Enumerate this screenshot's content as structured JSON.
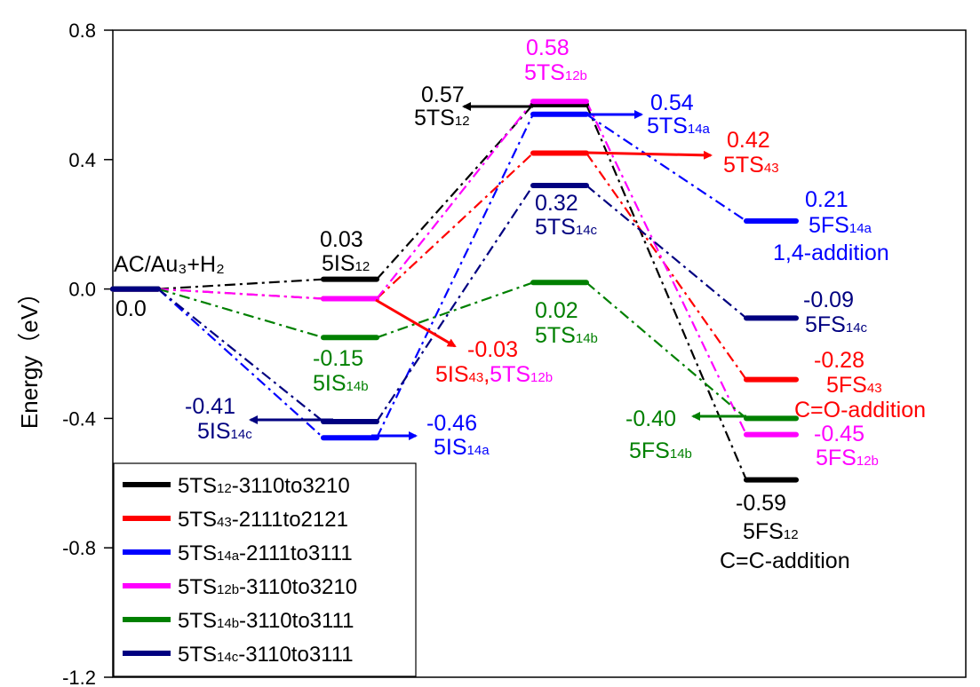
{
  "chart_data": {
    "type": "line",
    "title": "",
    "ylabel": "Energy（eV）",
    "ylim": [
      -1.2,
      0.8
    ],
    "yticks": [
      "0.8",
      "0.4",
      "0.0",
      "-0.4",
      "-0.8",
      "-1.2"
    ],
    "ytick_values": [
      0.8,
      0.4,
      0.0,
      -0.4,
      -0.8,
      -1.2
    ],
    "stages": [
      "AC/Au3+H2",
      "IS",
      "TS",
      "FS"
    ],
    "grid": false,
    "legend_position": "bottom-left",
    "colors": {
      "5TS12": "#000000",
      "5TS43": "#ff0000",
      "5TS14a": "#0000ff",
      "5TS12b": "#ff00ff",
      "5TS14b": "#008000",
      "5TS14c": "#000080"
    },
    "series": [
      {
        "id": "5TS12",
        "name": "5TS12-3110to3210",
        "legend_main": "5TS",
        "legend_sub": "12",
        "legend_tail": "-3110to3210",
        "values": [
          0.0,
          0.03,
          0.57,
          -0.59
        ]
      },
      {
        "id": "5TS43",
        "name": "5TS43-2111to2121",
        "legend_main": "5TS",
        "legend_sub": "43",
        "legend_tail": "-2111to2121",
        "values": [
          0.0,
          -0.03,
          0.42,
          -0.28
        ]
      },
      {
        "id": "5TS14a",
        "name": "5TS14a-2111to3111",
        "legend_main": "5TS",
        "legend_sub": "14a",
        "legend_tail": "-2111to3111",
        "values": [
          0.0,
          -0.46,
          0.54,
          0.21
        ]
      },
      {
        "id": "5TS12b",
        "name": "5TS12b-3110to3210",
        "legend_main": "5TS",
        "legend_sub": "12b",
        "legend_tail": "-3110to3210",
        "values": [
          0.0,
          -0.03,
          0.58,
          -0.45
        ]
      },
      {
        "id": "5TS14b",
        "name": "5TS14b-3110to3111",
        "legend_main": "5TS",
        "legend_sub": "14b",
        "legend_tail": "-3110to3111",
        "values": [
          0.0,
          -0.15,
          0.02,
          -0.4
        ]
      },
      {
        "id": "5TS14c",
        "name": "5TS14c-3110to3111",
        "legend_main": "5TS",
        "legend_sub": "14c",
        "legend_tail": "-3110to3111",
        "values": [
          0.0,
          -0.41,
          0.32,
          -0.09
        ]
      }
    ],
    "labels": {
      "start_name": "AC/Au₃+H₂",
      "start_value": "0.0",
      "is12_value": "0.03",
      "is12_main": "5IS",
      "is12_sub": "12",
      "is43_value": "-0.03",
      "is43_main1": "5IS",
      "is43_sub1": "43",
      "is43_sep": ",",
      "is43_main2": "5TS",
      "is43_sub2": "12b",
      "is14b_value": "-0.15",
      "is14b_main": "5IS",
      "is14b_sub": "14b",
      "is14c_value": "-0.41",
      "is14c_main": "5IS",
      "is14c_sub": "14c",
      "is14a_value": "-0.46",
      "is14a_main": "5IS",
      "is14a_sub": "14a",
      "ts12b_value": "0.58",
      "ts12b_main": "5TS",
      "ts12b_sub": "12b",
      "ts12_value": "0.57",
      "ts12_main": "5TS",
      "ts12_sub": "12",
      "ts14a_value": "0.54",
      "ts14a_main": "5TS",
      "ts14a_sub": "14a",
      "ts43_value": "0.42",
      "ts43_main": "5TS",
      "ts43_sub": "43",
      "ts14c_value": "0.32",
      "ts14c_main": "5TS",
      "ts14c_sub": "14c",
      "ts14b_value": "0.02",
      "ts14b_main": "5TS",
      "ts14b_sub": "14b",
      "fs14a_value": "0.21",
      "fs14a_main": "5FS",
      "fs14a_sub": "14a",
      "fs14a_note": "1,4-addition",
      "fs14c_value": "-0.09",
      "fs14c_main": "5FS",
      "fs14c_sub": "14c",
      "fs43_value": "-0.28",
      "fs43_main": "5FS",
      "fs43_sub": "43",
      "fs43_note": "C=O-addition",
      "fs14b_value": "-0.40",
      "fs14b_main": "5FS",
      "fs14b_sub": "14b",
      "fs12b_value": "-0.45",
      "fs12b_main": "5FS",
      "fs12b_sub": "12b",
      "fs12_value": "-0.59",
      "fs12_main": "5FS",
      "fs12_sub": "12",
      "fs12_note": "C=C-addition"
    }
  }
}
